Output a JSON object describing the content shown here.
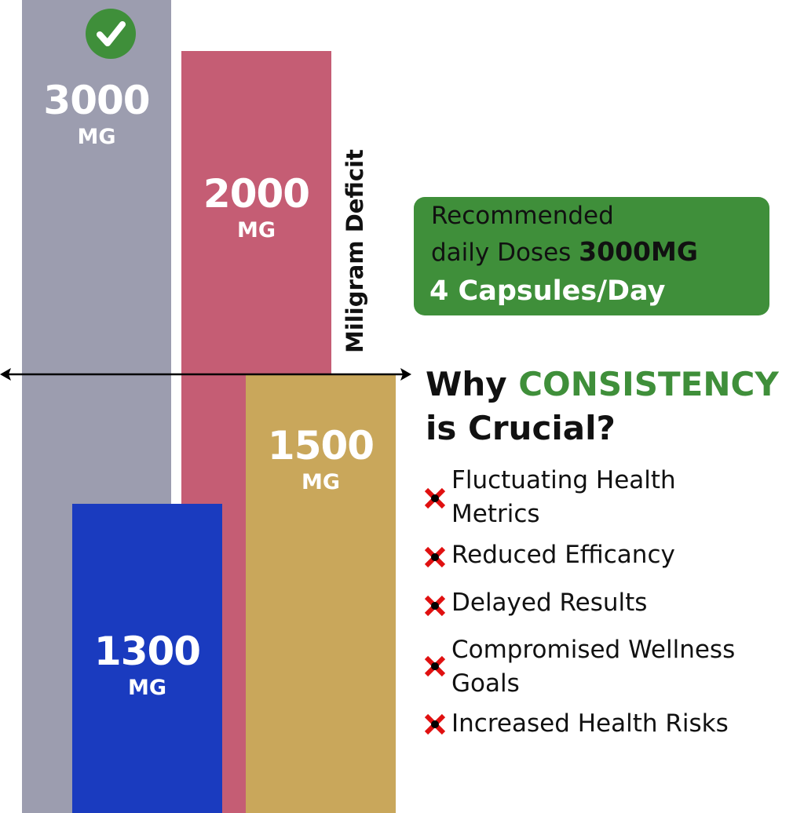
{
  "bars": [
    {
      "value": "3000",
      "unit": "MG",
      "color": "#9c9daf",
      "status": "recommended",
      "icon": "check-circle-icon"
    },
    {
      "value": "2000",
      "unit": "MG",
      "color": "#c55d74"
    },
    {
      "value": "1500",
      "unit": "MG",
      "color": "#c9a75b"
    },
    {
      "value": "1300",
      "unit": "MG",
      "color": "#1a3bbf"
    }
  ],
  "deficit_label": "Miligram Deficit",
  "recommendation": {
    "line1": "Recommended",
    "line2_prefix": "daily Doses",
    "line2_value": "3000MG",
    "line3": "4 Capsules/Day",
    "color": "#3f8f3a"
  },
  "heading": {
    "prefix": "Why",
    "highlight": "CONSISTENCY",
    "suffix": "is Crucial?"
  },
  "reasons": [
    {
      "line1": "Fluctuating Health",
      "line2": "Metrics",
      "icon": "red-x-icon"
    },
    {
      "line1": "Reduced Efficancy",
      "line2": "",
      "icon": "red-x-icon"
    },
    {
      "line1": "Delayed Results",
      "line2": "",
      "icon": "red-x-icon"
    },
    {
      "line1": "Compromised Wellness",
      "line2": "Goals",
      "icon": "red-x-icon"
    },
    {
      "line1": "Increased Health Risks",
      "line2": "",
      "icon": "red-x-icon"
    }
  ]
}
